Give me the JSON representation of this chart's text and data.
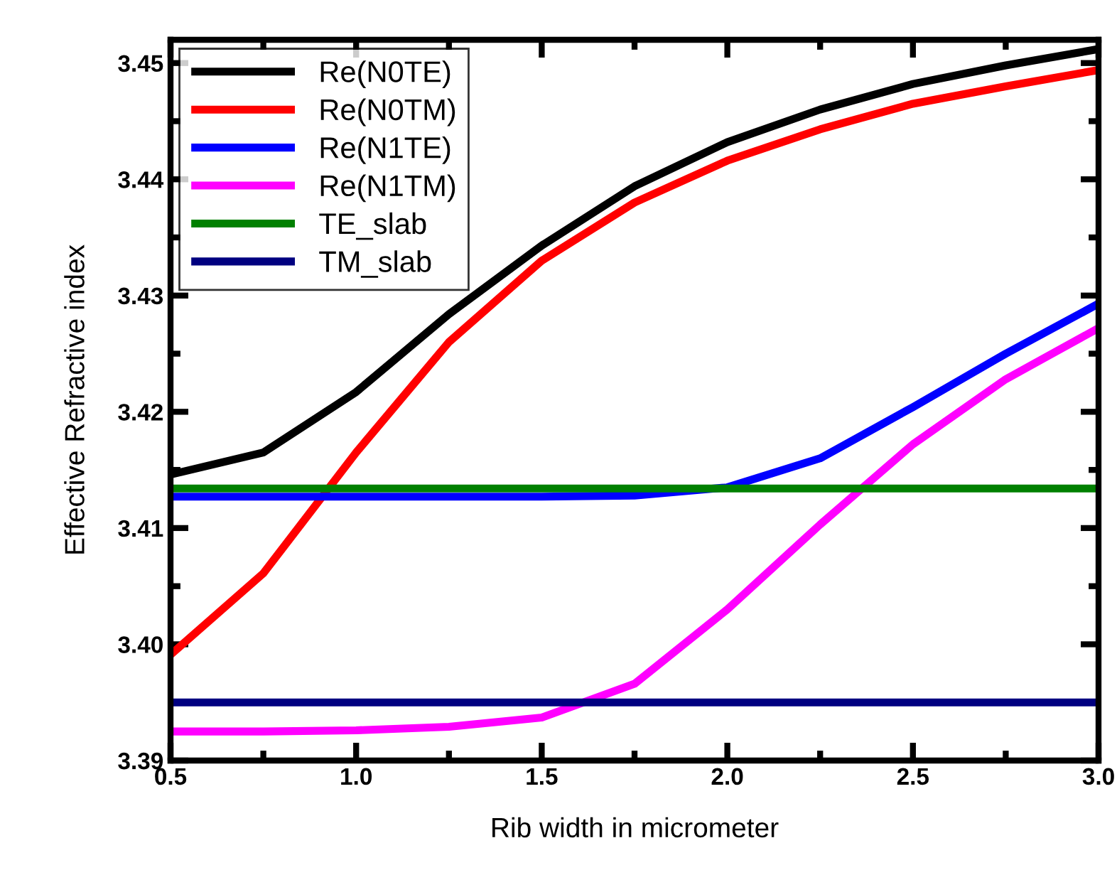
{
  "chart_data": {
    "type": "line",
    "xlabel": "Rib width in micrometer",
    "ylabel": "Effective Refractive index",
    "x": [
      0.5,
      0.75,
      1.0,
      1.25,
      1.5,
      1.75,
      2.0,
      2.25,
      2.5,
      2.75,
      3.0
    ],
    "series": [
      {
        "name": "Re(N0TE)",
        "color": "#000000",
        "values": [
          3.4146,
          3.4165,
          3.4217,
          3.4284,
          3.4343,
          3.4394,
          3.4432,
          3.446,
          3.4482,
          3.4498,
          3.4512
        ]
      },
      {
        "name": "Re(N0TM)",
        "color": "#ff0000",
        "values": [
          3.3991,
          3.4061,
          3.4165,
          3.426,
          3.433,
          3.438,
          3.4416,
          3.4443,
          3.4465,
          3.448,
          3.4494
        ]
      },
      {
        "name": "Re(N1TE)",
        "color": "#0000ff",
        "values": [
          3.4127,
          3.4127,
          3.4127,
          3.4127,
          3.4127,
          3.4128,
          3.4135,
          3.416,
          3.4204,
          3.425,
          3.4293
        ]
      },
      {
        "name": "Re(N1TM)",
        "color": "#ff00ff",
        "values": [
          3.3925,
          3.3925,
          3.3926,
          3.3929,
          3.3937,
          3.3966,
          3.403,
          3.4103,
          3.4172,
          3.4228,
          3.4272
        ]
      },
      {
        "name": "TE_slab",
        "color": "#008000",
        "values": [
          3.4134,
          3.4134,
          3.4134,
          3.4134,
          3.4134,
          3.4134,
          3.4134,
          3.4134,
          3.4134,
          3.4134,
          3.4134
        ]
      },
      {
        "name": "TM_slab",
        "color": "#000080",
        "values": [
          3.395,
          3.395,
          3.395,
          3.395,
          3.395,
          3.395,
          3.395,
          3.395,
          3.395,
          3.395,
          3.395
        ]
      }
    ],
    "xlim": [
      0.5,
      3.0
    ],
    "ylim": [
      3.39,
      3.452
    ],
    "xticks": [
      {
        "value": 0.5,
        "label": "0.5"
      },
      {
        "value": 1.0,
        "label": "1.0"
      },
      {
        "value": 1.5,
        "label": "1.5"
      },
      {
        "value": 2.0,
        "label": "2.0"
      },
      {
        "value": 2.5,
        "label": "2.5"
      },
      {
        "value": 3.0,
        "label": "3.0"
      }
    ],
    "yticks": [
      {
        "value": 3.39,
        "label": "3.39"
      },
      {
        "value": 3.4,
        "label": "3.40"
      },
      3.41,
      3.42,
      3.43,
      3.44,
      3.45
    ],
    "legend": "top left",
    "grid": false,
    "marker": "none",
    "line_style": "solid"
  }
}
